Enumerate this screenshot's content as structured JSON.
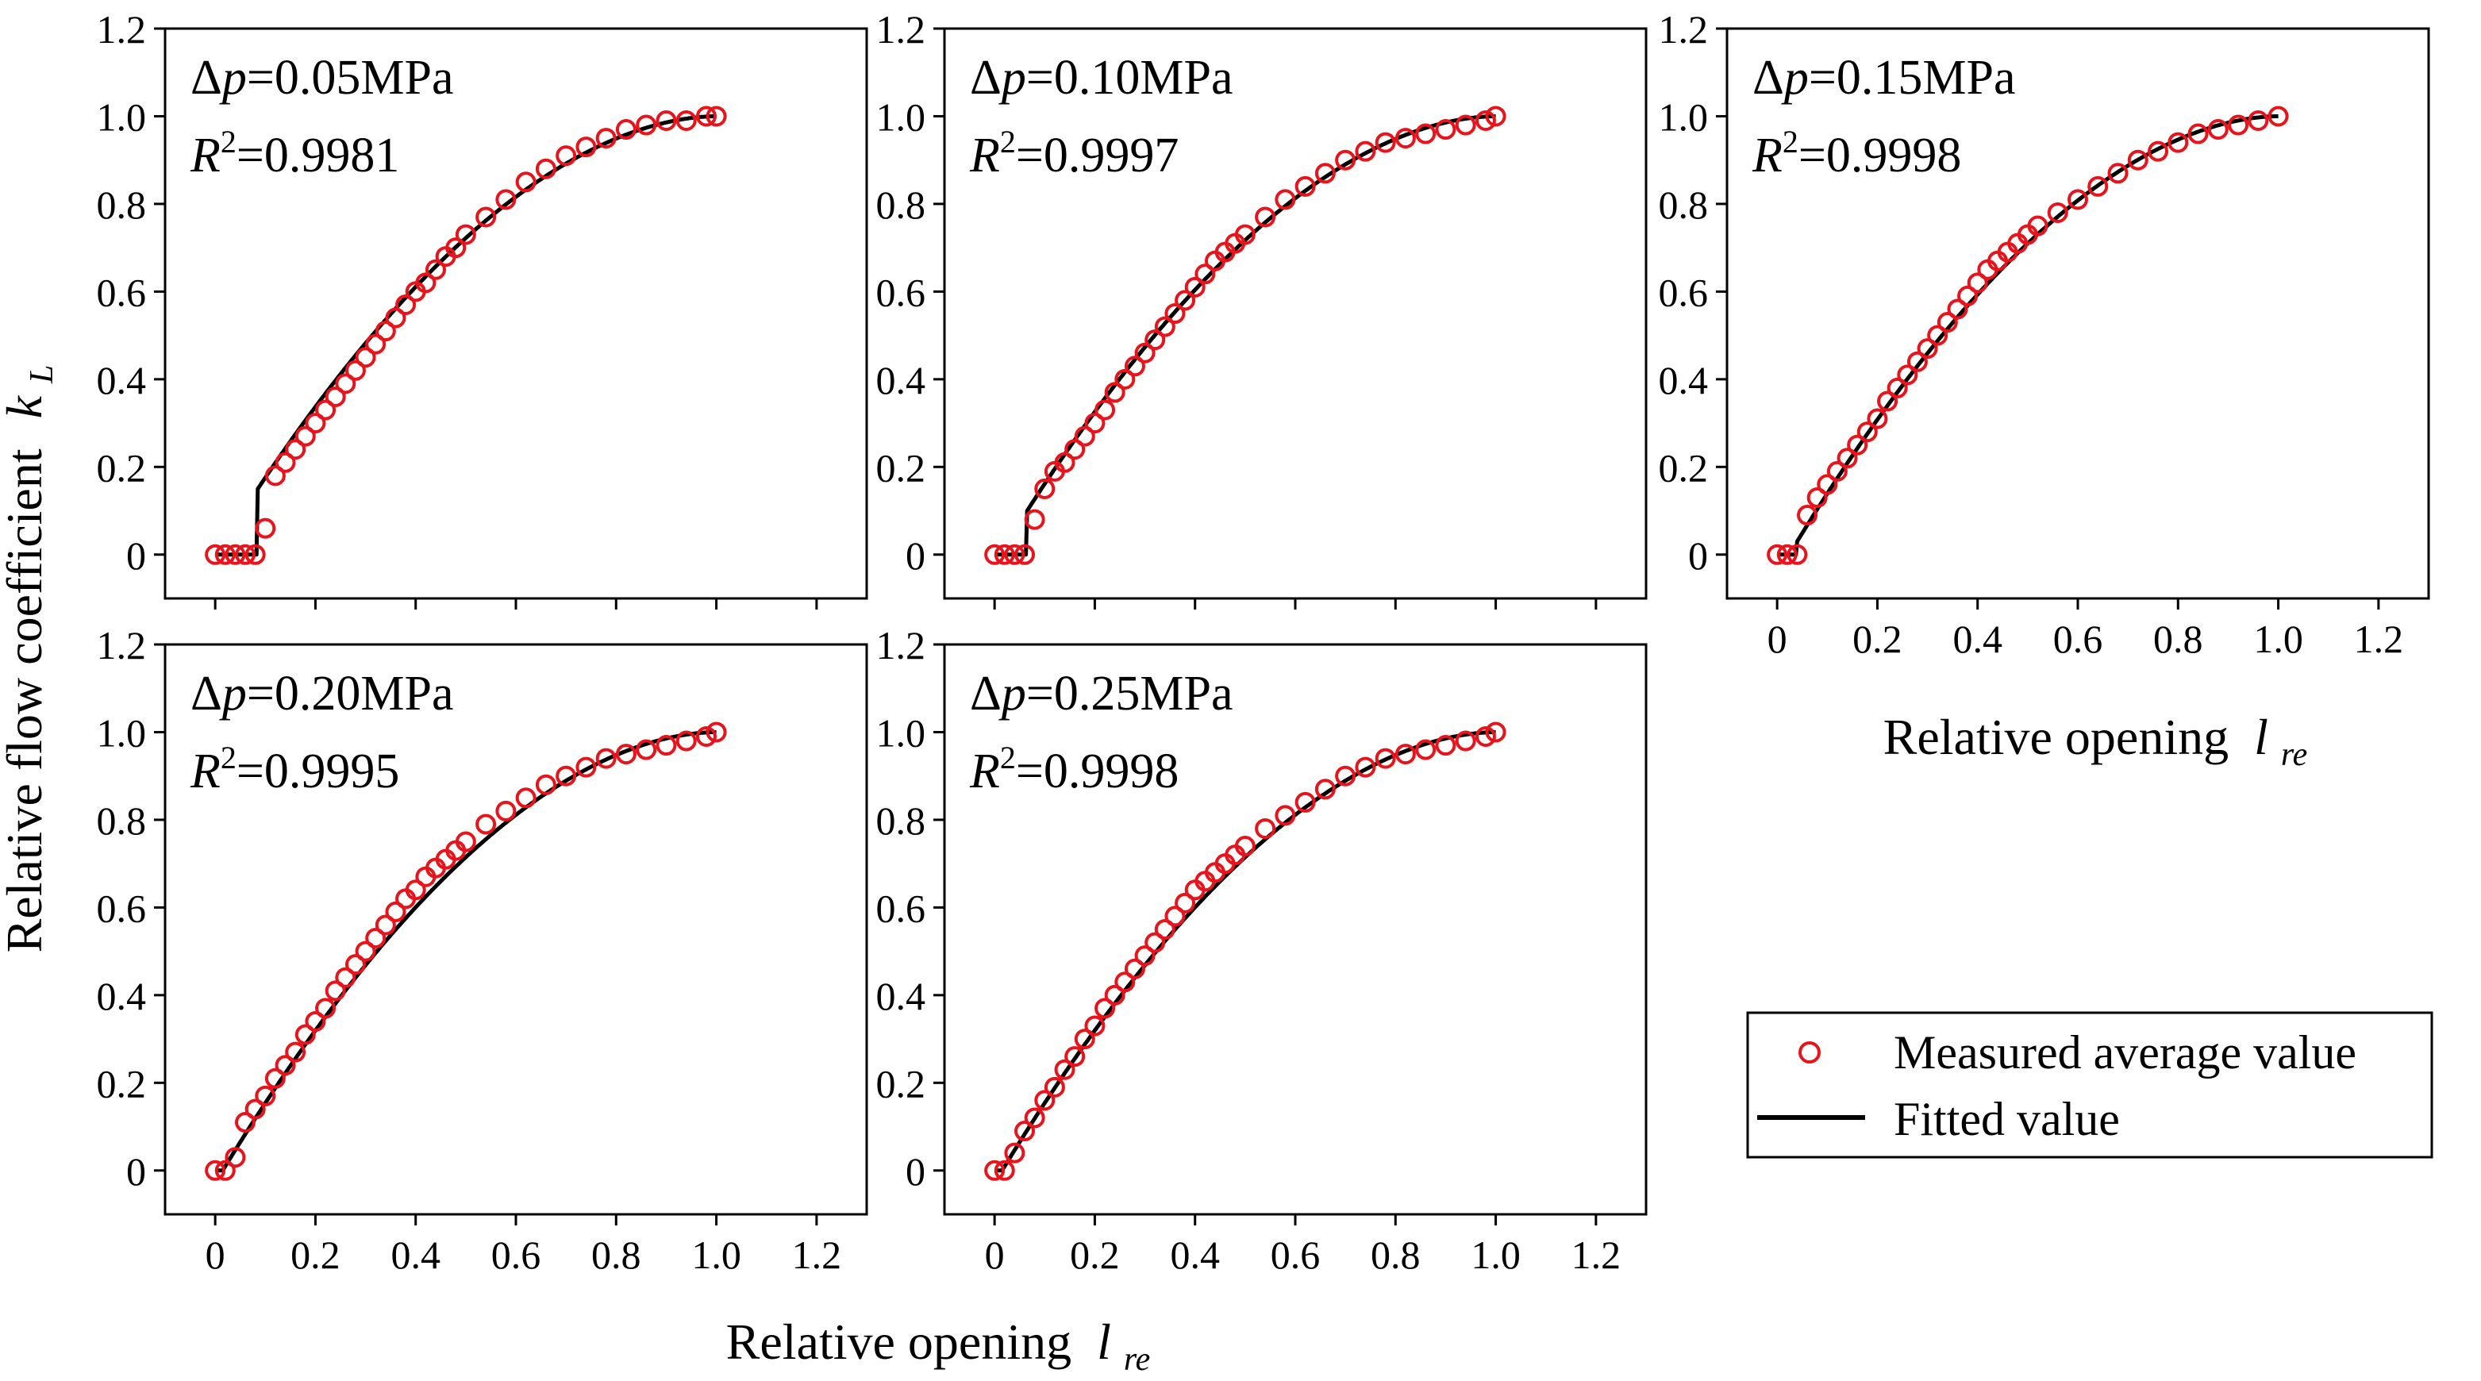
{
  "figure": {
    "y_axis_label": "Relative flow coefficient",
    "y_axis_symbol": "k",
    "y_axis_subscript": "L",
    "x_axis_label": "Relative opening",
    "x_axis_symbol": "l",
    "x_axis_subscript": "re",
    "r2_prefix": "R",
    "r2_sup": "2",
    "dp_symbol": "Δ",
    "dp_var": "p",
    "legend": {
      "measured_label": "Measured average value",
      "fitted_label": "Fitted value"
    },
    "colors": {
      "measured": "#e8131b",
      "fitted": "#000000"
    }
  },
  "chart_data": [
    {
      "type": "scatter+line",
      "title": "=0.05MPa",
      "r2": "=0.9981",
      "xlabel": "Relative opening l_re",
      "ylabel": "Relative flow coefficient k_L",
      "xlim": [
        -0.1,
        1.3
      ],
      "ylim": [
        -0.1,
        1.2
      ],
      "xticks": [
        "0",
        "0.2",
        "0.4",
        "0.6",
        "0.8",
        "1.0",
        "1.2"
      ],
      "yticks": [
        "0",
        "0.2",
        "0.4",
        "0.6",
        "0.8",
        "1.0",
        "1.2"
      ],
      "threshold": 0.085,
      "fit_jump": 0.15,
      "measured_x": [
        0,
        0.02,
        0.04,
        0.06,
        0.08,
        0.1,
        0.12,
        0.14,
        0.16,
        0.18,
        0.2,
        0.22,
        0.24,
        0.26,
        0.28,
        0.3,
        0.32,
        0.34,
        0.36,
        0.38,
        0.4,
        0.42,
        0.44,
        0.46,
        0.48,
        0.5,
        0.54,
        0.58,
        0.62,
        0.66,
        0.7,
        0.74,
        0.78,
        0.82,
        0.86,
        0.9,
        0.94,
        0.98,
        1.0
      ],
      "measured_y": [
        0,
        0,
        0,
        0,
        0,
        0.06,
        0.18,
        0.21,
        0.24,
        0.27,
        0.3,
        0.33,
        0.36,
        0.39,
        0.42,
        0.45,
        0.48,
        0.51,
        0.54,
        0.57,
        0.6,
        0.62,
        0.65,
        0.68,
        0.7,
        0.73,
        0.77,
        0.81,
        0.85,
        0.88,
        0.91,
        0.93,
        0.95,
        0.97,
        0.98,
        0.99,
        0.99,
        1.0,
        1.0
      ]
    },
    {
      "type": "scatter+line",
      "title": "=0.10MPa",
      "r2": "=0.9997",
      "xlabel": "Relative opening l_re",
      "ylabel": "Relative flow coefficient k_L",
      "xlim": [
        -0.1,
        1.3
      ],
      "ylim": [
        -0.1,
        1.2
      ],
      "xticks": [
        "0",
        "0.2",
        "0.4",
        "0.6",
        "0.8",
        "1.0",
        "1.2"
      ],
      "yticks": [
        "0",
        "0.2",
        "0.4",
        "0.6",
        "0.8",
        "1.0",
        "1.2"
      ],
      "threshold": 0.065,
      "fit_jump": 0.1,
      "measured_x": [
        0,
        0.02,
        0.04,
        0.06,
        0.08,
        0.1,
        0.12,
        0.14,
        0.16,
        0.18,
        0.2,
        0.22,
        0.24,
        0.26,
        0.28,
        0.3,
        0.32,
        0.34,
        0.36,
        0.38,
        0.4,
        0.42,
        0.44,
        0.46,
        0.48,
        0.5,
        0.54,
        0.58,
        0.62,
        0.66,
        0.7,
        0.74,
        0.78,
        0.82,
        0.86,
        0.9,
        0.94,
        0.98,
        1.0
      ],
      "measured_y": [
        0,
        0,
        0,
        0,
        0.08,
        0.15,
        0.19,
        0.21,
        0.24,
        0.27,
        0.3,
        0.33,
        0.37,
        0.4,
        0.43,
        0.46,
        0.49,
        0.52,
        0.55,
        0.58,
        0.61,
        0.64,
        0.67,
        0.69,
        0.71,
        0.73,
        0.77,
        0.81,
        0.84,
        0.87,
        0.9,
        0.92,
        0.94,
        0.95,
        0.96,
        0.97,
        0.98,
        0.99,
        1.0
      ]
    },
    {
      "type": "scatter+line",
      "title": "=0.15MPa",
      "r2": "=0.9998",
      "xlabel": "Relative opening l_re",
      "ylabel": "Relative flow coefficient k_L",
      "xlim": [
        -0.1,
        1.3
      ],
      "ylim": [
        -0.1,
        1.2
      ],
      "xticks": [
        "0",
        "0.2",
        "0.4",
        "0.6",
        "0.8",
        "1.0",
        "1.2"
      ],
      "yticks": [
        "0",
        "0.2",
        "0.4",
        "0.6",
        "0.8",
        "1.0",
        "1.2"
      ],
      "threshold": 0.04,
      "fit_jump": 0.03,
      "measured_x": [
        0,
        0.02,
        0.04,
        0.06,
        0.08,
        0.1,
        0.12,
        0.14,
        0.16,
        0.18,
        0.2,
        0.22,
        0.24,
        0.26,
        0.28,
        0.3,
        0.32,
        0.34,
        0.36,
        0.38,
        0.4,
        0.42,
        0.44,
        0.46,
        0.48,
        0.5,
        0.52,
        0.56,
        0.6,
        0.64,
        0.68,
        0.72,
        0.76,
        0.8,
        0.84,
        0.88,
        0.92,
        0.96,
        1.0
      ],
      "measured_y": [
        0,
        0,
        0,
        0.09,
        0.13,
        0.16,
        0.19,
        0.22,
        0.25,
        0.28,
        0.31,
        0.35,
        0.38,
        0.41,
        0.44,
        0.47,
        0.5,
        0.53,
        0.56,
        0.59,
        0.62,
        0.65,
        0.67,
        0.69,
        0.71,
        0.73,
        0.75,
        0.78,
        0.81,
        0.84,
        0.87,
        0.9,
        0.92,
        0.94,
        0.96,
        0.97,
        0.98,
        0.99,
        1.0
      ]
    },
    {
      "type": "scatter+line",
      "title": "=0.20MPa",
      "r2": "=0.9995",
      "xlabel": "Relative opening l_re",
      "ylabel": "Relative flow coefficient k_L",
      "xlim": [
        -0.1,
        1.3
      ],
      "ylim": [
        -0.1,
        1.2
      ],
      "xticks": [
        "0",
        "0.2",
        "0.4",
        "0.6",
        "0.8",
        "1.0",
        "1.2"
      ],
      "yticks": [
        "0",
        "0.2",
        "0.4",
        "0.6",
        "0.8",
        "1.0",
        "1.2"
      ],
      "threshold": 0.015,
      "fit_jump": 0.0,
      "measured_x": [
        0,
        0.02,
        0.04,
        0.06,
        0.08,
        0.1,
        0.12,
        0.14,
        0.16,
        0.18,
        0.2,
        0.22,
        0.24,
        0.26,
        0.28,
        0.3,
        0.32,
        0.34,
        0.36,
        0.38,
        0.4,
        0.42,
        0.44,
        0.46,
        0.48,
        0.5,
        0.54,
        0.58,
        0.62,
        0.66,
        0.7,
        0.74,
        0.78,
        0.82,
        0.86,
        0.9,
        0.94,
        0.98,
        1.0
      ],
      "measured_y": [
        0,
        0,
        0.03,
        0.11,
        0.14,
        0.17,
        0.21,
        0.24,
        0.27,
        0.31,
        0.34,
        0.37,
        0.41,
        0.44,
        0.47,
        0.5,
        0.53,
        0.56,
        0.59,
        0.62,
        0.64,
        0.67,
        0.69,
        0.71,
        0.73,
        0.75,
        0.79,
        0.82,
        0.85,
        0.88,
        0.9,
        0.92,
        0.94,
        0.95,
        0.96,
        0.97,
        0.98,
        0.99,
        1.0
      ]
    },
    {
      "type": "scatter+line",
      "title": "=0.25MPa",
      "r2": "=0.9998",
      "xlabel": "Relative opening l_re",
      "ylabel": "Relative flow coefficient k_L",
      "xlim": [
        -0.1,
        1.3
      ],
      "ylim": [
        -0.1,
        1.2
      ],
      "xticks": [
        "0",
        "0.2",
        "0.4",
        "0.6",
        "0.8",
        "1.0",
        "1.2"
      ],
      "yticks": [
        "0",
        "0.2",
        "0.4",
        "0.6",
        "0.8",
        "1.0",
        "1.2"
      ],
      "threshold": 0.015,
      "fit_jump": 0.0,
      "measured_x": [
        0,
        0.02,
        0.04,
        0.06,
        0.08,
        0.1,
        0.12,
        0.14,
        0.16,
        0.18,
        0.2,
        0.22,
        0.24,
        0.26,
        0.28,
        0.3,
        0.32,
        0.34,
        0.36,
        0.38,
        0.4,
        0.42,
        0.44,
        0.46,
        0.48,
        0.5,
        0.54,
        0.58,
        0.62,
        0.66,
        0.7,
        0.74,
        0.78,
        0.82,
        0.86,
        0.9,
        0.94,
        0.98,
        1.0
      ],
      "measured_y": [
        0,
        0,
        0.04,
        0.09,
        0.12,
        0.16,
        0.19,
        0.23,
        0.26,
        0.3,
        0.33,
        0.37,
        0.4,
        0.43,
        0.46,
        0.49,
        0.52,
        0.55,
        0.58,
        0.61,
        0.64,
        0.66,
        0.68,
        0.7,
        0.72,
        0.74,
        0.78,
        0.81,
        0.84,
        0.87,
        0.9,
        0.92,
        0.94,
        0.95,
        0.96,
        0.97,
        0.98,
        0.99,
        1.0
      ]
    }
  ]
}
